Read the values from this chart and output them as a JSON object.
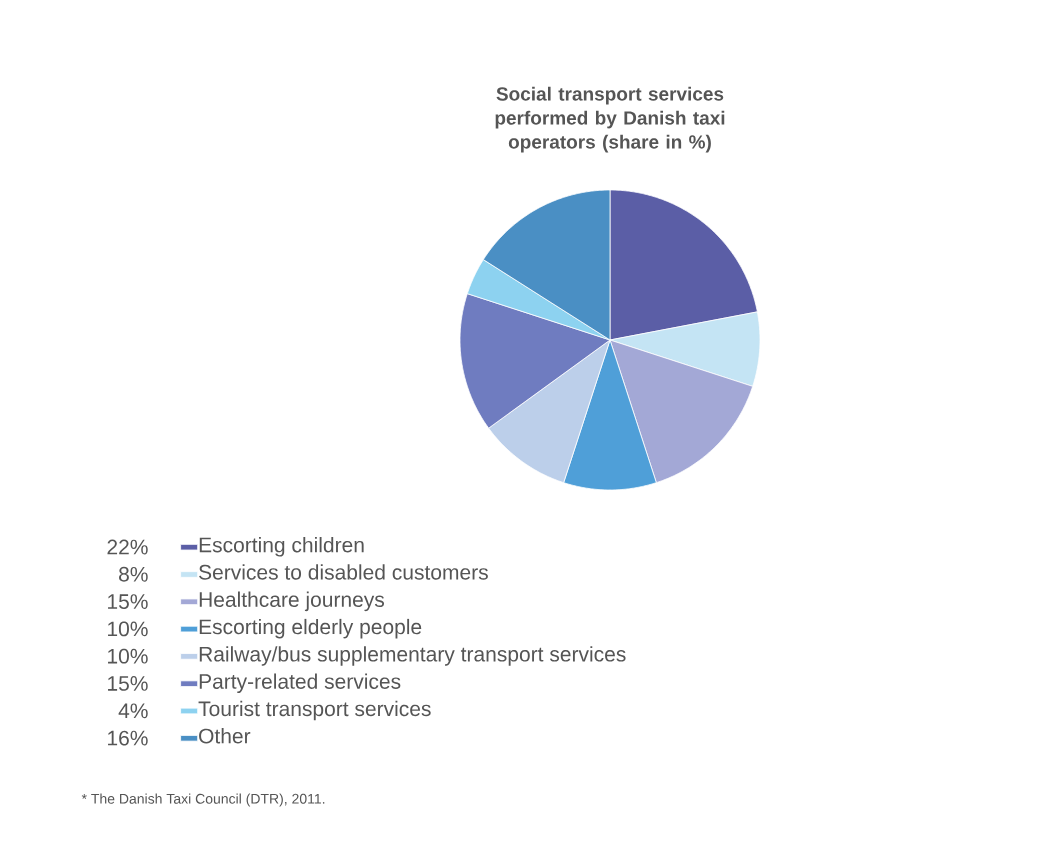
{
  "chart_data": {
    "type": "pie",
    "title": "Social transport services performed by Danish taxi operators (share in %)",
    "categories": [
      "Escorting children",
      "Services to disabled customers",
      "Healthcare journeys",
      "Escorting elderly people",
      "Railway/bus supplementary transport services",
      "Party-related services",
      "Tourist transport services",
      "Other"
    ],
    "values": [
      22,
      8,
      15,
      10,
      10,
      15,
      4,
      16
    ],
    "colors": [
      "#5b5ea6",
      "#c4e4f4",
      "#a3a8d6",
      "#4f9fd8",
      "#bccfea",
      "#6f7cc0",
      "#8dd2f0",
      "#4a8fc4"
    ],
    "value_labels": [
      "22%",
      "8%",
      "15%",
      "10%",
      "10%",
      "15%",
      "4%",
      "16%"
    ],
    "legend": "bottom",
    "annotations": [
      "* The Danish Taxi Council (DTR), 2011."
    ]
  }
}
